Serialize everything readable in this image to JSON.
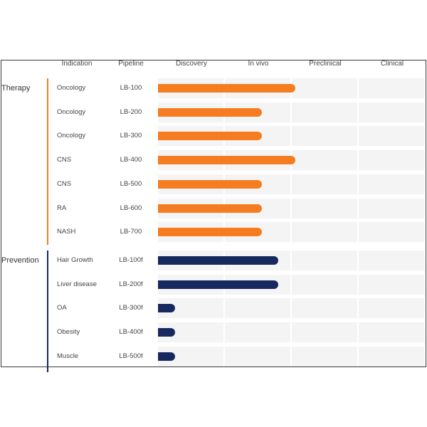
{
  "colors": {
    "therapy": "#f57c20",
    "prevention": "#16295e",
    "track": "#f4f4f4"
  },
  "headers": {
    "indication": "Indication",
    "pipeline": "Pipeline",
    "stages": [
      "Discovery",
      "In vivo",
      "Preclinical",
      "Clinical"
    ]
  },
  "chart_data": {
    "type": "bar",
    "orientation": "horizontal",
    "stages": [
      "Discovery",
      "In vivo",
      "Preclinical",
      "Clinical"
    ],
    "xlim": [
      0,
      4
    ],
    "groups": [
      {
        "name": "Therapy",
        "color": "#f57c20",
        "rows": [
          {
            "indication": "Oncology",
            "pipeline": "LB-100",
            "progress": 2.05
          },
          {
            "indication": "Oncology",
            "pipeline": "LB-200",
            "progress": 1.55
          },
          {
            "indication": "Oncology",
            "pipeline": "LB-300",
            "progress": 1.55
          },
          {
            "indication": "CNS",
            "pipeline": "LB-400",
            "progress": 2.05
          },
          {
            "indication": "CNS",
            "pipeline": "LB-500",
            "progress": 1.55
          },
          {
            "indication": "RA",
            "pipeline": "LB-600",
            "progress": 1.55
          },
          {
            "indication": "NASH",
            "pipeline": "LB-700",
            "progress": 1.55
          }
        ]
      },
      {
        "name": "Prevention",
        "color": "#16295e",
        "rows": [
          {
            "indication": "Hair Growth",
            "pipeline": "LB-100f",
            "progress": 1.8
          },
          {
            "indication": "Liver disease",
            "pipeline": "LB-200f",
            "progress": 1.8
          },
          {
            "indication": "OA",
            "pipeline": "LB-300f",
            "progress": 0.25
          },
          {
            "indication": "Obesity",
            "pipeline": "LB-400f",
            "progress": 0.25
          },
          {
            "indication": "Muscle",
            "pipeline": "LB-500f",
            "progress": 0.25
          }
        ]
      }
    ]
  }
}
